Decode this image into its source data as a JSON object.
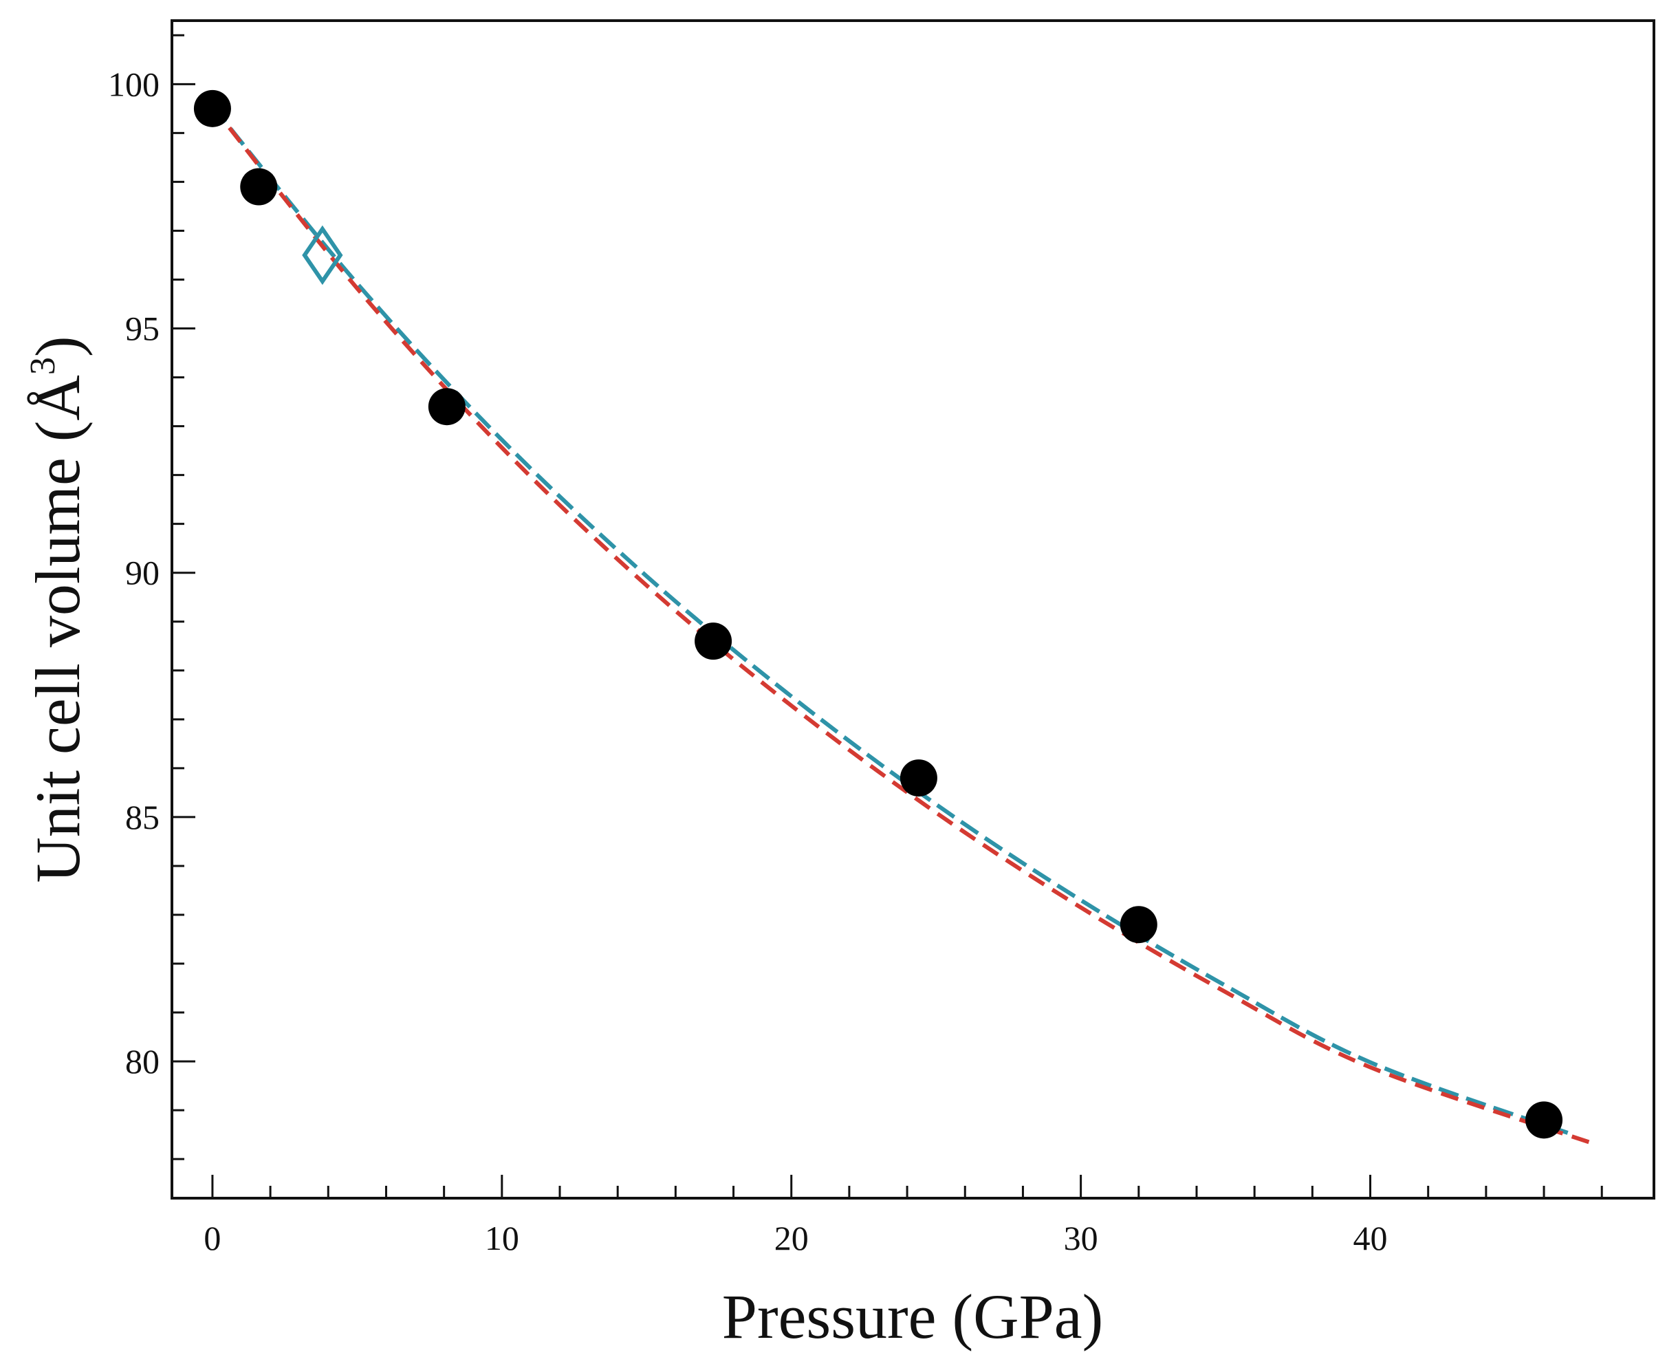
{
  "chart_data": {
    "type": "scatter",
    "xlabel": "Pressure (GPa)",
    "ylabel": {
      "text": "Unit cell volume (",
      "unit": "Å",
      "superscript": "3",
      "close": ")"
    },
    "xlim": [
      -1.4,
      49.8
    ],
    "ylim": [
      77.2,
      101.3
    ],
    "xticks": [
      0,
      10,
      20,
      30,
      40
    ],
    "yticks": [
      80,
      85,
      90,
      95,
      100
    ],
    "grid": false,
    "series": [
      {
        "kind": "points",
        "marker": "filled-circle",
        "color": "#000000",
        "x": [
          0,
          1.6,
          8.1,
          17.3,
          24.4,
          32.0,
          46.0
        ],
        "y": [
          99.5,
          97.9,
          93.4,
          88.6,
          85.8,
          82.8,
          78.8
        ]
      },
      {
        "kind": "points",
        "marker": "open-diamond",
        "color": "#2e93a8",
        "x": [
          3.8
        ],
        "y": [
          96.5
        ]
      },
      {
        "kind": "dashed-line",
        "color": "#2e93a8",
        "x": [
          0,
          5,
          10,
          15,
          20,
          25,
          30,
          35,
          40,
          47
        ],
        "y": [
          99.55,
          95.92,
          92.72,
          89.93,
          87.47,
          85.26,
          83.3,
          81.55,
          79.98,
          78.5
        ]
      },
      {
        "kind": "dashed-line",
        "color": "#d43a32",
        "x": [
          0,
          5,
          10,
          15,
          20,
          25,
          30,
          35,
          40,
          47.8
        ],
        "y": [
          99.55,
          95.82,
          92.56,
          89.74,
          87.28,
          85.09,
          83.15,
          81.42,
          79.88,
          78.3
        ]
      }
    ]
  }
}
